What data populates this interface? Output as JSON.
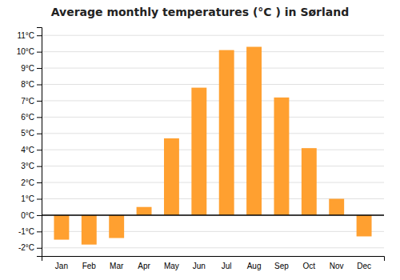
{
  "chart_data": {
    "type": "bar",
    "title": "Average monthly temperatures (°C ) in Sørland",
    "categories": [
      "Jan",
      "Feb",
      "Mar",
      "Apr",
      "May",
      "Jun",
      "Jul",
      "Aug",
      "Sep",
      "Oct",
      "Nov",
      "Dec"
    ],
    "values": [
      -1.5,
      -1.8,
      -1.4,
      0.5,
      4.7,
      7.8,
      10.1,
      10.3,
      7.2,
      4.1,
      1.0,
      -1.3
    ],
    "color": "#FFA030",
    "ylim": [
      -2.5,
      11.5
    ],
    "yticks": [
      {
        "value": -2,
        "label": "-2°C"
      },
      {
        "value": -1,
        "label": "-1°C"
      },
      {
        "value": 0,
        "label": "0°C"
      },
      {
        "value": 1,
        "label": "1°C"
      },
      {
        "value": 2,
        "label": "2°C"
      },
      {
        "value": 3,
        "label": "3°C"
      },
      {
        "value": 4,
        "label": "4°C"
      },
      {
        "value": 5,
        "label": "5°C"
      },
      {
        "value": 6,
        "label": "6°C"
      },
      {
        "value": 7,
        "label": "7°C"
      },
      {
        "value": 8,
        "label": "8°C"
      },
      {
        "value": 9,
        "label": "9°C"
      },
      {
        "value": 10,
        "label": "10°C"
      },
      {
        "value": 11,
        "label": "11°C"
      }
    ],
    "grid": true
  }
}
